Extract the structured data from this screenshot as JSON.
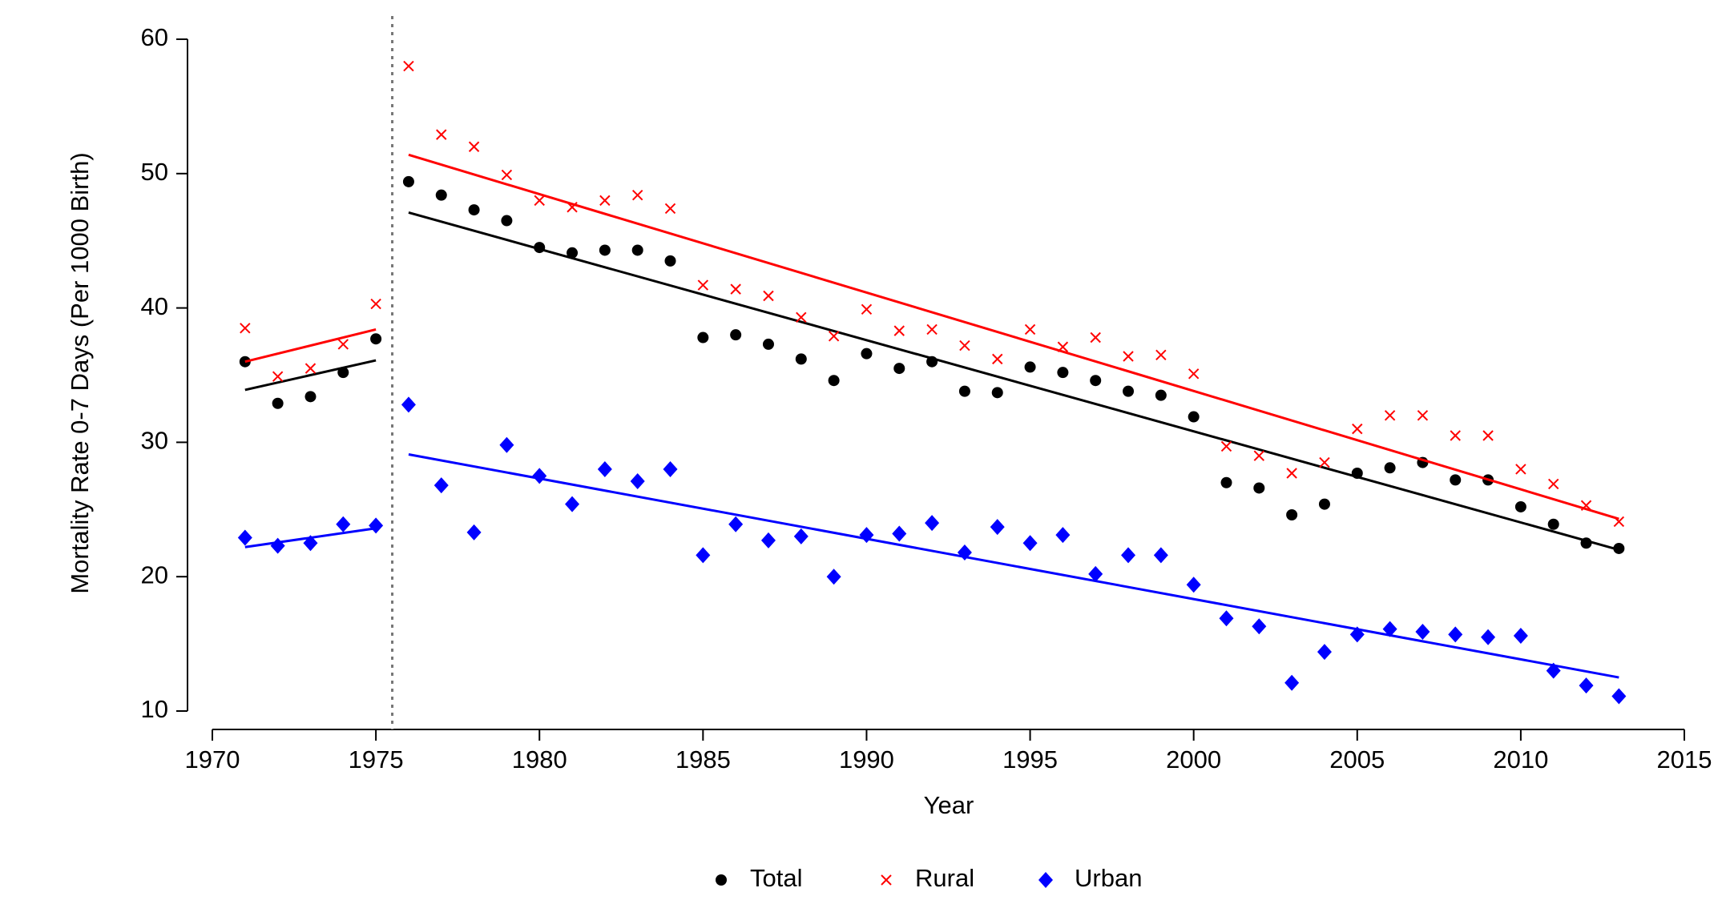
{
  "chart_data": {
    "type": "scatter",
    "xlabel": "Year",
    "ylabel": "Mortality Rate 0-7 Days (Per 1000 Birth)",
    "x": [
      1971,
      1972,
      1973,
      1974,
      1975,
      1976,
      1977,
      1978,
      1979,
      1980,
      1981,
      1982,
      1983,
      1984,
      1985,
      1986,
      1987,
      1988,
      1989,
      1990,
      1991,
      1992,
      1993,
      1994,
      1995,
      1996,
      1997,
      1998,
      1999,
      2000,
      2001,
      2002,
      2003,
      2004,
      2005,
      2006,
      2007,
      2008,
      2009,
      2010,
      2011,
      2012,
      2013
    ],
    "series": [
      {
        "name": "Total",
        "color": "#000000",
        "marker": "circle",
        "values": [
          36.0,
          32.9,
          33.4,
          35.2,
          37.7,
          49.4,
          48.4,
          47.3,
          46.5,
          44.5,
          44.1,
          44.3,
          44.3,
          43.5,
          37.8,
          38.0,
          37.3,
          36.2,
          34.6,
          36.6,
          35.5,
          36.0,
          33.8,
          33.7,
          35.6,
          35.2,
          34.6,
          33.8,
          33.5,
          31.9,
          27.0,
          26.6,
          24.6,
          25.4,
          27.7,
          28.1,
          28.5,
          27.2,
          27.2,
          25.2,
          23.9,
          22.5,
          22.1
        ],
        "fit": [
          {
            "x": [
              1971,
              1975
            ],
            "values": [
              33.9,
              36.1
            ]
          },
          {
            "x": [
              1976,
              2013
            ],
            "values": [
              47.1,
              22.0
            ]
          }
        ]
      },
      {
        "name": "Rural",
        "color": "#ff0000",
        "marker": "cross",
        "values": [
          38.5,
          34.9,
          35.5,
          37.3,
          40.3,
          58.0,
          52.9,
          52.0,
          49.9,
          48.0,
          47.5,
          48.0,
          48.4,
          47.4,
          41.7,
          41.4,
          40.9,
          39.3,
          37.9,
          39.9,
          38.3,
          38.4,
          37.2,
          36.2,
          38.4,
          37.1,
          37.8,
          36.4,
          36.5,
          35.1,
          29.7,
          29.0,
          27.7,
          28.5,
          31.0,
          32.0,
          32.0,
          30.5,
          30.5,
          28.0,
          26.9,
          25.3,
          24.1
        ],
        "fit": [
          {
            "x": [
              1971,
              1975
            ],
            "values": [
              36.0,
              38.4
            ]
          },
          {
            "x": [
              1976,
              2013
            ],
            "values": [
              51.4,
              24.3
            ]
          }
        ]
      },
      {
        "name": "Urban",
        "color": "#0000ff",
        "marker": "diamond",
        "values": [
          22.9,
          22.3,
          22.5,
          23.9,
          23.8,
          32.8,
          26.8,
          23.3,
          29.8,
          27.5,
          25.4,
          28.0,
          27.1,
          28.0,
          21.6,
          23.9,
          22.7,
          23.0,
          20.0,
          23.1,
          23.2,
          24.0,
          21.8,
          23.7,
          22.5,
          23.1,
          20.2,
          21.6,
          21.6,
          19.4,
          16.9,
          16.3,
          12.1,
          14.4,
          15.7,
          16.1,
          15.9,
          15.7,
          15.5,
          15.6,
          13.0,
          11.9,
          11.1
        ],
        "fit": [
          {
            "x": [
              1971,
              1975
            ],
            "values": [
              22.2,
              23.6
            ]
          },
          {
            "x": [
              1976,
              2013
            ],
            "values": [
              29.1,
              12.5
            ]
          }
        ]
      }
    ],
    "vline": 1975.5,
    "xlim": [
      1970,
      2015
    ],
    "xticks": [
      1970,
      1975,
      1980,
      1985,
      1990,
      1995,
      2000,
      2005,
      2010,
      2015
    ],
    "ylim": [
      10,
      60
    ],
    "yticks": [
      10,
      20,
      30,
      40,
      50,
      60
    ],
    "grid": false,
    "legend": "bottom"
  }
}
